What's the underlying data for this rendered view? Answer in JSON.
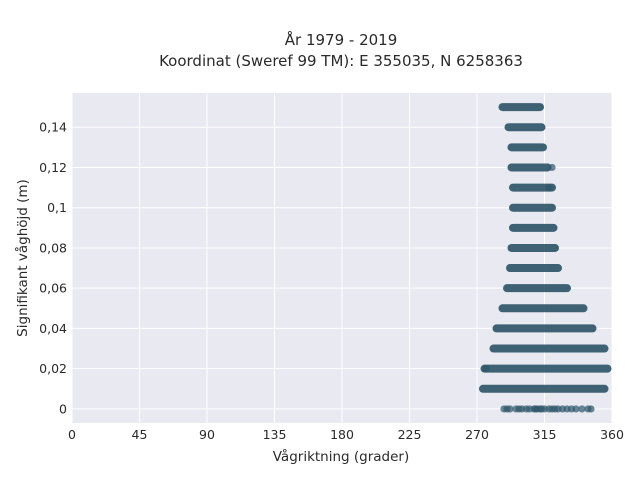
{
  "chart_data": {
    "type": "scatter",
    "title_lines": [
      "År 1979 - 2019",
      "Koordinat (Sweref 99 TM): E 355035, N 6258363"
    ],
    "xlabel": "Vågriktning (grader)",
    "ylabel": "Signifikant våghöjd (m)",
    "xlim": [
      0,
      360
    ],
    "ylim": [
      -0.007,
      0.157
    ],
    "xticks": [
      0,
      45,
      90,
      135,
      180,
      225,
      270,
      315,
      360
    ],
    "xtick_labels": [
      "0",
      "45",
      "90",
      "135",
      "180",
      "225",
      "270",
      "315",
      "360"
    ],
    "yticks": [
      0,
      0.02,
      0.04,
      0.06,
      0.08,
      0.1,
      0.12,
      0.14
    ],
    "ytick_labels": [
      "0",
      "0,02",
      "0,04",
      "0,06",
      "0,08",
      "0,1",
      "0,12",
      "0,14"
    ],
    "grid": true,
    "marker_color": "#2f5569",
    "plot_bg": "#e8e9f1",
    "bands": [
      {
        "y": 0.15,
        "x_from": 287,
        "x_to": 312
      },
      {
        "y": 0.14,
        "x_from": 291,
        "x_to": 313
      },
      {
        "y": 0.13,
        "x_from": 293,
        "x_to": 314
      },
      {
        "y": 0.12,
        "x_from": 293,
        "x_to": 317
      },
      {
        "y": 0.11,
        "x_from": 294,
        "x_to": 320
      },
      {
        "y": 0.1,
        "x_from": 294,
        "x_to": 320
      },
      {
        "y": 0.09,
        "x_from": 294,
        "x_to": 321
      },
      {
        "y": 0.08,
        "x_from": 293,
        "x_to": 322
      },
      {
        "y": 0.07,
        "x_from": 292,
        "x_to": 324
      },
      {
        "y": 0.06,
        "x_from": 290,
        "x_to": 330
      },
      {
        "y": 0.05,
        "x_from": 287,
        "x_to": 341
      },
      {
        "y": 0.04,
        "x_from": 283,
        "x_to": 347
      },
      {
        "y": 0.03,
        "x_from": 281,
        "x_to": 355
      },
      {
        "y": 0.02,
        "x_from": 275,
        "x_to": 357
      },
      {
        "y": 0.01,
        "x_from": 274,
        "x_to": 355
      }
    ],
    "sparse_points": [
      {
        "x": 288,
        "y": 0
      },
      {
        "x": 290,
        "y": 0
      },
      {
        "x": 292,
        "y": 0
      },
      {
        "x": 296,
        "y": 0
      },
      {
        "x": 298,
        "y": 0
      },
      {
        "x": 300,
        "y": 0
      },
      {
        "x": 303,
        "y": 0
      },
      {
        "x": 305,
        "y": 0
      },
      {
        "x": 308,
        "y": 0
      },
      {
        "x": 309,
        "y": 0
      },
      {
        "x": 310,
        "y": 0
      },
      {
        "x": 312,
        "y": 0
      },
      {
        "x": 313,
        "y": 0
      },
      {
        "x": 315,
        "y": 0
      },
      {
        "x": 318,
        "y": 0
      },
      {
        "x": 320,
        "y": 0
      },
      {
        "x": 322,
        "y": 0
      },
      {
        "x": 324,
        "y": 0
      },
      {
        "x": 327,
        "y": 0
      },
      {
        "x": 330,
        "y": 0
      },
      {
        "x": 333,
        "y": 0
      },
      {
        "x": 336,
        "y": 0
      },
      {
        "x": 340,
        "y": 0
      },
      {
        "x": 344,
        "y": 0
      },
      {
        "x": 346,
        "y": 0
      },
      {
        "x": 318,
        "y": 0.11
      },
      {
        "x": 320,
        "y": 0.12
      },
      {
        "x": 276,
        "y": 0.02
      }
    ]
  }
}
